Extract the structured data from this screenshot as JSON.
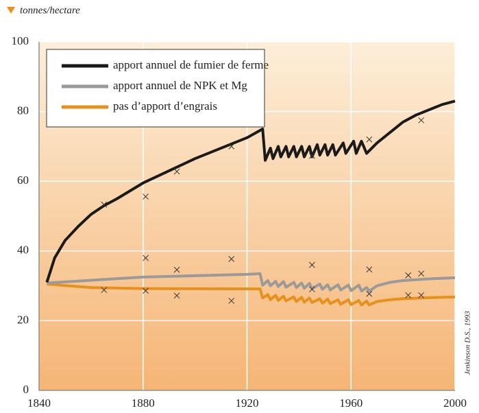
{
  "chart_data": {
    "type": "line",
    "y_label": "tonnes/hectare",
    "source": "Jenkinson D.S., 1993",
    "xlim": [
      1840,
      2000
    ],
    "xticks": [
      1840,
      1880,
      1920,
      1960,
      2000
    ],
    "ylim": [
      0,
      100
    ],
    "yticks": [
      0,
      20,
      40,
      60,
      80,
      100
    ],
    "grid": true,
    "series": [
      {
        "name": "apport annuel de fumier de ferme",
        "color": "#1a1a1a",
        "x": [
          1843,
          1846,
          1850,
          1855,
          1860,
          1865,
          1870,
          1880,
          1890,
          1900,
          1910,
          1920,
          1926,
          1927,
          1929,
          1930,
          1932,
          1933,
          1935,
          1936,
          1938,
          1939,
          1941,
          1942,
          1944,
          1945,
          1947,
          1948,
          1950,
          1951,
          1953,
          1954,
          1957,
          1958,
          1961,
          1962,
          1964,
          1966,
          1970,
          1975,
          1980,
          1985,
          1990,
          1995,
          2000
        ],
        "values": [
          31,
          38,
          43,
          47,
          50.5,
          53,
          55,
          59.5,
          63,
          66.5,
          69.5,
          72.5,
          75,
          66,
          69.5,
          66.5,
          70,
          67,
          70,
          67,
          70,
          67,
          70,
          67,
          70,
          67,
          70.5,
          67.5,
          70.5,
          67.5,
          70.5,
          67.5,
          71,
          68,
          71.5,
          68,
          71.5,
          68,
          71,
          74,
          77,
          79,
          80.5,
          82,
          83
        ]
      },
      {
        "name": "apport annuel de NPK et Mg",
        "color": "#9a9a9a",
        "x": [
          1843,
          1880,
          1920,
          1925,
          1926,
          1928,
          1929,
          1931,
          1932,
          1934,
          1935,
          1938,
          1939,
          1941,
          1942,
          1944,
          1945,
          1948,
          1949,
          1951,
          1952,
          1955,
          1956,
          1959,
          1960,
          1963,
          1964,
          1966,
          1967,
          1970,
          1975,
          1980,
          1990,
          2000
        ],
        "values": [
          30.8,
          32.5,
          33.3,
          33.5,
          30.2,
          31.5,
          30,
          31.3,
          29.8,
          31.2,
          29.6,
          31,
          29.5,
          30.8,
          29.3,
          30.7,
          29.2,
          30.5,
          29,
          30.3,
          28.8,
          30.3,
          28.8,
          30.2,
          28.6,
          30.2,
          28.5,
          29.5,
          28.5,
          30,
          31,
          31.5,
          32,
          32.3
        ]
      },
      {
        "name": "pas d’apport d’engrais",
        "color": "#e8901c",
        "x": [
          1843,
          1860,
          1880,
          1925,
          1926,
          1928,
          1929,
          1931,
          1932,
          1934,
          1935,
          1938,
          1939,
          1941,
          1942,
          1944,
          1945,
          1948,
          1949,
          1951,
          1952,
          1955,
          1956,
          1959,
          1960,
          1963,
          1964,
          1966,
          1967,
          1970,
          1975,
          1980,
          1990,
          2000
        ],
        "values": [
          30.5,
          29.5,
          29.2,
          29.1,
          26.5,
          27.5,
          26,
          27.3,
          25.8,
          27,
          25.7,
          26.8,
          25.5,
          26.7,
          25.3,
          26.5,
          25.2,
          26.3,
          25,
          26.2,
          24.9,
          26,
          24.7,
          26,
          24.6,
          25.8,
          24.5,
          25.6,
          24.5,
          25.5,
          26,
          26.3,
          26.6,
          26.8
        ]
      }
    ],
    "points": {
      "x": [
        1865,
        1881,
        1893,
        1914,
        1945,
        1967,
        1987,
        1865,
        1881,
        1881,
        1893,
        1893,
        1914,
        1914,
        1945,
        1945,
        1967,
        1967,
        1982,
        1987,
        1982,
        1987
      ],
      "y": [
        53.3,
        55.6,
        62.8,
        70,
        67.3,
        72,
        77.5,
        28.8,
        38,
        28.6,
        34.6,
        27.2,
        37.7,
        25.7,
        36,
        29,
        34.7,
        27.7,
        33,
        33.5,
        27.3,
        27.3
      ]
    }
  }
}
